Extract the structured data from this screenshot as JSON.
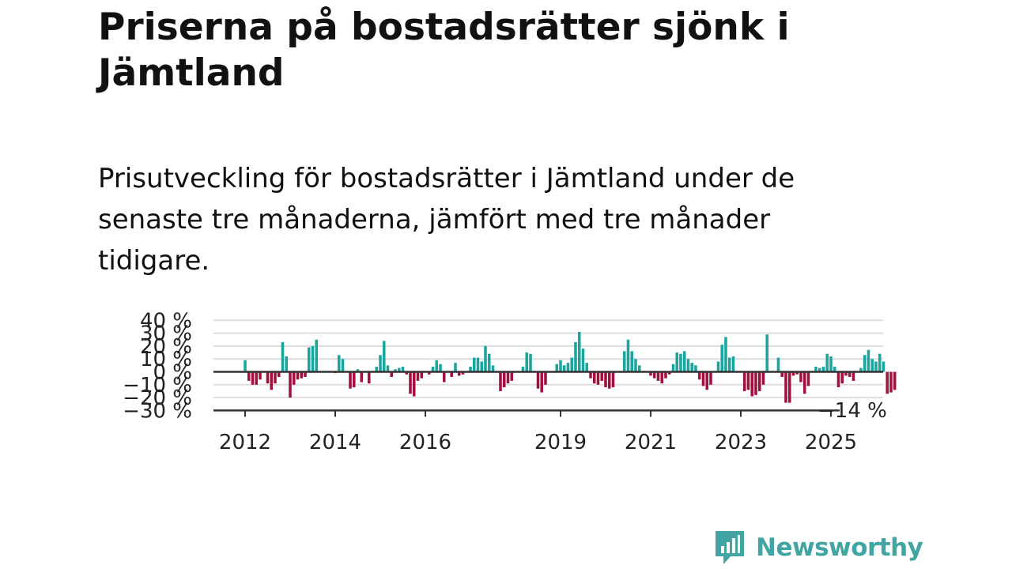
{
  "title": "Priserna på bostadsrätter sjönk i Jämtland",
  "subtitle": "Prisutveckling för bostadsrätter i Jämtland under de senaste tre månaderna, jämfört med tre månader tidigare.",
  "logo_text": "Newsworthy",
  "colors": {
    "positive": "#1aa59e",
    "negative": "#a2113d",
    "grid": "#dddddd",
    "zero_line": "#333333",
    "logo": "#41a6a2"
  },
  "chart_data": {
    "type": "bar",
    "title": "",
    "xlabel": "",
    "ylabel": "",
    "ylim": [
      -30,
      40
    ],
    "yticks": [
      -30,
      -20,
      -10,
      0,
      10,
      20,
      30,
      40
    ],
    "ytick_labels": [
      "−30 %",
      "−20 %",
      "−10 %",
      "0 %",
      "10 %",
      "20 %",
      "30 %",
      "40 %"
    ],
    "xticks": [
      "2012",
      "2014",
      "2016",
      "2019",
      "2021",
      "2023",
      "2025"
    ],
    "end_label": "−14 %",
    "x_start": 2012.0,
    "x_step_years": 0.08333,
    "values": [
      9,
      -7,
      -10,
      -10,
      -6,
      0,
      -9,
      -14,
      -9,
      -4,
      23,
      12,
      -20,
      -10,
      -6,
      -5,
      -4,
      19,
      20,
      25,
      0,
      0,
      0,
      0,
      -1,
      13,
      10,
      0,
      -13,
      -12,
      2,
      -8,
      0,
      -9,
      0,
      4,
      13,
      24,
      5,
      -4,
      2,
      3,
      4,
      -2,
      -17,
      -19,
      -7,
      -5,
      0,
      -2,
      4,
      9,
      6,
      -8,
      0,
      -4,
      7,
      -3,
      -2,
      0,
      4,
      11,
      11,
      8,
      20,
      14,
      5,
      0,
      -15,
      -12,
      -9,
      -7,
      0,
      0,
      4,
      15,
      14,
      0,
      -13,
      -16,
      -10,
      0,
      0,
      6,
      9,
      5,
      7,
      11,
      23,
      31,
      18,
      7,
      -5,
      -9,
      -10,
      -7,
      -12,
      -13,
      -12,
      0,
      0,
      16,
      25,
      16,
      10,
      5,
      0,
      0,
      -3,
      -5,
      -7,
      -9,
      -5,
      -2,
      6,
      15,
      14,
      16,
      10,
      7,
      5,
      -6,
      -11,
      -14,
      -10,
      0,
      8,
      21,
      27,
      11,
      12,
      0,
      0,
      -15,
      -14,
      -19,
      -18,
      -15,
      -10,
      29,
      0,
      0,
      11,
      -4,
      -24,
      -24,
      -3,
      -2,
      -8,
      -17,
      -11,
      0,
      4,
      3,
      4,
      14,
      12,
      4,
      -12,
      -9,
      -3,
      -4,
      -7,
      0,
      3,
      13,
      17,
      10,
      8,
      14,
      8,
      -17,
      -16,
      -14
    ]
  }
}
